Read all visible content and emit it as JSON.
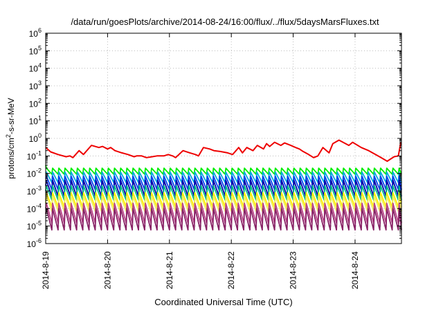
{
  "chart_data": {
    "type": "line",
    "title": "/data/run/goesPlots/archive/2014-08-24/16:00/flux/../flux/5daysMarsFluxes.txt",
    "xlabel": "Coordinated Universal Time (UTC)",
    "ylabel": "protons/cm2-s-sr-MeV",
    "ylabel_parts": {
      "pre": "protons/cm",
      "sup": "2",
      "post": "-s-sr-MeV"
    },
    "y_scale": "log",
    "y_exponent_range": [
      -6,
      6
    ],
    "y_tick_base": "10",
    "y_tick_exponents": [
      "6",
      "5",
      "4",
      "3",
      "2",
      "1",
      "0",
      "-1",
      "-2",
      "-3",
      "-4",
      "-5",
      "-6"
    ],
    "x_start": "2014-08-19",
    "x_range_days": [
      0,
      5.75
    ],
    "x_tick_labels": [
      "2014-8-19",
      "2014-8-20",
      "2014-8-21",
      "2014-8-22",
      "2014-8-23",
      "2014-8-24"
    ],
    "grid": true,
    "legend": "none",
    "series": [
      {
        "color": "#ee0000",
        "x": [
          0.0,
          0.08,
          0.2,
          0.33,
          0.39,
          0.44,
          0.54,
          0.61,
          0.74,
          0.86,
          0.92,
          1.0,
          1.05,
          1.12,
          1.23,
          1.33,
          1.43,
          1.47,
          1.55,
          1.63,
          1.72,
          1.8,
          1.91,
          1.98,
          2.05,
          2.1,
          2.22,
          2.33,
          2.42,
          2.47,
          2.55,
          2.65,
          2.72,
          2.82,
          2.94,
          3.02,
          3.12,
          3.18,
          3.25,
          3.35,
          3.42,
          3.52,
          3.57,
          3.62,
          3.7,
          3.8,
          3.86,
          3.96,
          4.04,
          4.1,
          4.16,
          4.25,
          4.33,
          4.4,
          4.48,
          4.58,
          4.64,
          4.74,
          4.9,
          4.96,
          5.1,
          5.22,
          5.33,
          5.42,
          5.52,
          5.63,
          5.7,
          5.74
        ],
        "values": [
          0.3,
          0.17,
          0.12,
          0.09,
          0.1,
          0.08,
          0.2,
          0.12,
          0.4,
          0.3,
          0.35,
          0.25,
          0.3,
          0.2,
          0.15,
          0.12,
          0.09,
          0.1,
          0.1,
          0.08,
          0.09,
          0.1,
          0.1,
          0.12,
          0.1,
          0.08,
          0.2,
          0.15,
          0.12,
          0.1,
          0.3,
          0.25,
          0.2,
          0.18,
          0.15,
          0.12,
          0.3,
          0.15,
          0.3,
          0.2,
          0.4,
          0.25,
          0.5,
          0.35,
          0.6,
          0.4,
          0.55,
          0.4,
          0.3,
          0.25,
          0.18,
          0.12,
          0.08,
          0.1,
          0.3,
          0.15,
          0.5,
          0.8,
          0.4,
          0.6,
          0.3,
          0.2,
          0.12,
          0.08,
          0.05,
          0.09,
          0.1,
          0.6
        ]
      },
      {
        "color": "#00ee00",
        "period_days": 0.1,
        "low": 0.009,
        "high": 0.02,
        "start": 0.03
      },
      {
        "color": "#00aadd",
        "period_days": 0.1,
        "low": 0.003,
        "high": 0.012,
        "start": 0.01
      },
      {
        "color": "#0044ee",
        "period_days": 0.1,
        "low": 0.0012,
        "high": 0.007,
        "start": 0.005
      },
      {
        "color": "#0000aa",
        "period_days": 0.1,
        "low": 0.0005,
        "high": 0.004,
        "start": 0.002
      },
      {
        "color": "#00bb88",
        "period_days": 0.1,
        "low": 0.0003,
        "high": 0.002,
        "start": 0.001
      },
      {
        "color": "#ffee00",
        "period_days": 0.1,
        "low": 0.00012,
        "high": 0.0008,
        "start": 0.0003
      },
      {
        "color": "#eeee66",
        "period_days": 0.1,
        "low": 7e-05,
        "high": 0.0005,
        "start": 0.0002
      },
      {
        "color": "#bb4488",
        "period_days": 0.1,
        "low": 1.5e-05,
        "high": 0.0002,
        "start": 0.0001
      },
      {
        "color": "#882266",
        "period_days": 0.1,
        "low": 6e-06,
        "high": 0.0001,
        "start": 5e-05
      }
    ]
  }
}
